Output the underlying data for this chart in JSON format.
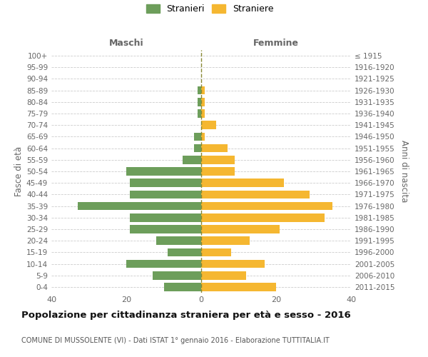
{
  "age_groups": [
    "100+",
    "95-99",
    "90-94",
    "85-89",
    "80-84",
    "75-79",
    "70-74",
    "65-69",
    "60-64",
    "55-59",
    "50-54",
    "45-49",
    "40-44",
    "35-39",
    "30-34",
    "25-29",
    "20-24",
    "15-19",
    "10-14",
    "5-9",
    "0-4"
  ],
  "birth_years": [
    "≤ 1915",
    "1916-1920",
    "1921-1925",
    "1926-1930",
    "1931-1935",
    "1936-1940",
    "1941-1945",
    "1946-1950",
    "1951-1955",
    "1956-1960",
    "1961-1965",
    "1966-1970",
    "1971-1975",
    "1976-1980",
    "1981-1985",
    "1986-1990",
    "1991-1995",
    "1996-2000",
    "2001-2005",
    "2006-2010",
    "2011-2015"
  ],
  "maschi": [
    0,
    0,
    0,
    1,
    1,
    1,
    0,
    2,
    2,
    5,
    20,
    19,
    19,
    33,
    19,
    19,
    12,
    9,
    20,
    13,
    10
  ],
  "femmine": [
    0,
    0,
    0,
    1,
    1,
    1,
    4,
    1,
    7,
    9,
    9,
    22,
    29,
    35,
    33,
    21,
    13,
    8,
    17,
    12,
    20
  ],
  "male_color": "#6d9e5b",
  "female_color": "#f5b731",
  "bar_height": 0.72,
  "title": "Popolazione per cittadinanza straniera per età e sesso - 2016",
  "subtitle": "COMUNE DI MUSSOLENTE (VI) - Dati ISTAT 1° gennaio 2016 - Elaborazione TUTTITALIA.IT",
  "ylabel_left": "Fasce di età",
  "ylabel_right": "Anni di nascita",
  "xlabel_left": "Maschi",
  "xlabel_right": "Femmine",
  "legend_maschi": "Stranieri",
  "legend_femmine": "Straniere",
  "background_color": "#ffffff",
  "grid_color": "#cccccc",
  "text_color": "#666666",
  "vline_color": "#888833"
}
